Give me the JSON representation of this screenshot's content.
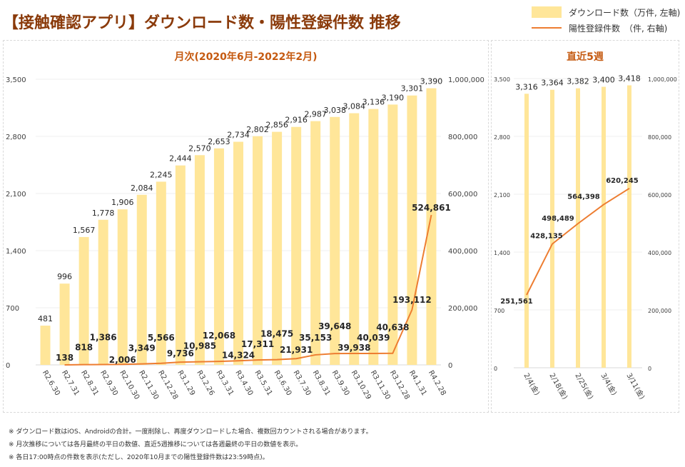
{
  "page": {
    "title": "【接触確認アプリ】ダウンロード数・陽性登録件数 推移",
    "legend": [
      {
        "label": "ダウンロード数（万件, 左軸)",
        "type": "bar",
        "color": "#ffe699"
      },
      {
        "label": "陽性登録件数　（件, 右軸)",
        "type": "line",
        "color": "#ed7d31"
      }
    ],
    "notes": [
      "※ ダウンロード数はiOS、Androidの合計。一度削除し、再度ダウンロードした場合、複数回カウントされる場合があります。",
      "※ 月次推移については各月最終の平日の数値、直近5週推移については各週最終の平日の数値を表示。",
      "※ 各日17:00時点の件数を表示(ただし、2020年10月までの陽性登録件数は23:59時点)。"
    ]
  },
  "chart_data": [
    {
      "type": "bar",
      "title": "月次(2020年6月-2022年2月)",
      "categories": [
        "R2.6.30",
        "R2.7.31",
        "R2.8.31",
        "R2.9.30",
        "R2.10.30",
        "R2.11.30",
        "R2.12.28",
        "R3.1.29",
        "R3.2.26",
        "R3.3.31",
        "R3.4.30",
        "R3.5.31",
        "R3.6.30",
        "R3.7.30",
        "R3.8.31",
        "R3.9.30",
        "R3.10.29",
        "R3.11.30",
        "R3.12.28",
        "R4.1.31",
        "R4.2.28"
      ],
      "series": [
        {
          "name": "ダウンロード数（万件, 左軸)",
          "type": "bar",
          "axis": "left",
          "color": "#ffe699",
          "values": [
            481,
            996,
            1567,
            1778,
            1906,
            2084,
            2245,
            2444,
            2570,
            2653,
            2734,
            2802,
            2856,
            2916,
            2987,
            3038,
            3084,
            3136,
            3190,
            3301,
            3390
          ]
        },
        {
          "name": "陽性登録件数　（件, 右軸)",
          "type": "line",
          "axis": "right",
          "color": "#ed7d31",
          "start_index": 1,
          "values": [
            null,
            138,
            818,
            1386,
            2006,
            3349,
            5566,
            9736,
            10985,
            12068,
            14324,
            17311,
            18475,
            21931,
            35153,
            39648,
            39938,
            40039,
            40638,
            193112,
            524861
          ]
        }
      ],
      "y_left": {
        "range": [
          0,
          3500
        ],
        "ticks": [
          "0",
          "700",
          "1,400",
          "2,100",
          "2,800",
          "3,500"
        ],
        "tick_values": [
          0,
          700,
          1400,
          2100,
          2800,
          3500
        ]
      },
      "y_right": {
        "range": [
          0,
          1000000
        ],
        "ticks": [
          "0",
          "200,000",
          "400,000",
          "600,000",
          "800,000",
          "1,000,000"
        ],
        "tick_values": [
          0,
          200000,
          400000,
          600000,
          800000,
          1000000
        ]
      },
      "bar_labels": [
        "481",
        "996",
        "1,567",
        "1,778",
        "1,906",
        "2,084",
        "2,245",
        "2,444",
        "2,570",
        "2,653",
        "2,734",
        "2,802",
        "2,856",
        "2,916",
        "2,987",
        "3,038",
        "3,084",
        "3,136",
        "3,190",
        "3,301",
        "3,390"
      ],
      "line_labels": [
        "",
        "138",
        "818",
        "1,386",
        "2,006",
        "3,349",
        "5,566",
        "9,736",
        "10,985",
        "12,068",
        "14,324",
        "17,311",
        "18,475",
        "21,931",
        "35,153",
        "39,648",
        "39,938",
        "40,039",
        "40,638",
        "193,112",
        "524,861"
      ],
      "grid": true
    },
    {
      "type": "bar",
      "title": "直近5週",
      "categories": [
        "2/4(金)",
        "2/18(金)",
        "2/25(金)",
        "3/4(金)",
        "3/11(金)"
      ],
      "series": [
        {
          "name": "ダウンロード数（万件, 左軸)",
          "type": "bar",
          "axis": "left",
          "color": "#ffe699",
          "values": [
            3316,
            3364,
            3382,
            3400,
            3418
          ]
        },
        {
          "name": "陽性登録件数　（件, 右軸)",
          "type": "line",
          "axis": "right",
          "color": "#ed7d31",
          "values": [
            251561,
            428135,
            498489,
            564398,
            620245
          ]
        }
      ],
      "y_left": {
        "range": [
          0,
          3500
        ],
        "ticks": [
          "0",
          "700",
          "1,400",
          "2,100",
          "2,800",
          "3,500"
        ],
        "tick_values": [
          0,
          700,
          1400,
          2100,
          2800,
          3500
        ]
      },
      "y_right": {
        "range": [
          0,
          1000000
        ],
        "ticks": [
          "0",
          "200,000",
          "400,000",
          "600,000",
          "800,000",
          "1,000,000"
        ],
        "tick_values": [
          0,
          200000,
          400000,
          600000,
          800000,
          1000000
        ]
      },
      "bar_labels": [
        "3,316",
        "3,364",
        "3,382",
        "3,400",
        "3,418"
      ],
      "line_labels": [
        "251,561",
        "428,135",
        "498,489",
        "564,398",
        "620,245"
      ],
      "grid": true
    }
  ]
}
